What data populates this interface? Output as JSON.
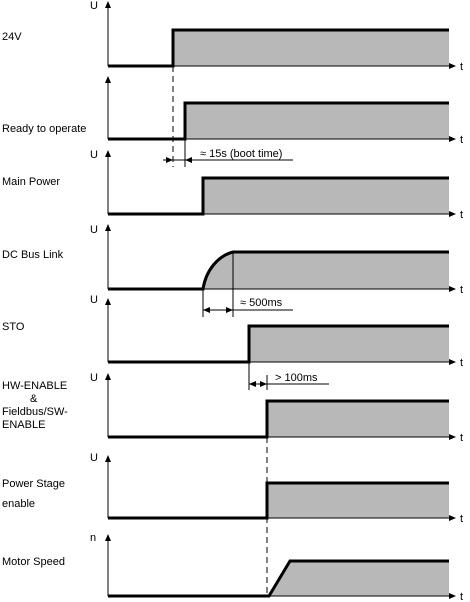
{
  "colors": {
    "fill": "#b8b8b8",
    "line": "#000000",
    "background": "#ffffff"
  },
  "time_axis_label": "t",
  "signals": [
    {
      "id": "24v",
      "label_lines": [
        "24V"
      ],
      "axis_symbol": "U"
    },
    {
      "id": "ready",
      "label_lines": [
        "Ready to operate"
      ],
      "axis_symbol": ""
    },
    {
      "id": "main-power",
      "label_lines": [
        "Main Power"
      ],
      "axis_symbol": "U"
    },
    {
      "id": "dc-bus",
      "label_lines": [
        "DC Bus Link"
      ],
      "axis_symbol": "U"
    },
    {
      "id": "sto",
      "label_lines": [
        "STO"
      ],
      "axis_symbol": "U"
    },
    {
      "id": "hw-enable",
      "label_lines": [
        "HW-ENABLE",
        "&",
        "Fieldbus/SW-",
        "ENABLE"
      ],
      "axis_symbol": "U"
    },
    {
      "id": "power-stage",
      "label_lines": [
        "Power Stage",
        "enable"
      ],
      "axis_symbol": "U"
    },
    {
      "id": "motor-speed",
      "label_lines": [
        "Motor Speed"
      ],
      "axis_symbol": "n"
    }
  ],
  "annotations": [
    {
      "id": "boot-time",
      "text": "≈ 15s (boot time)"
    },
    {
      "id": "dc-bus-delay",
      "text": "≈ 500ms"
    },
    {
      "id": "sto-delay",
      "text": "> 100ms"
    }
  ]
}
